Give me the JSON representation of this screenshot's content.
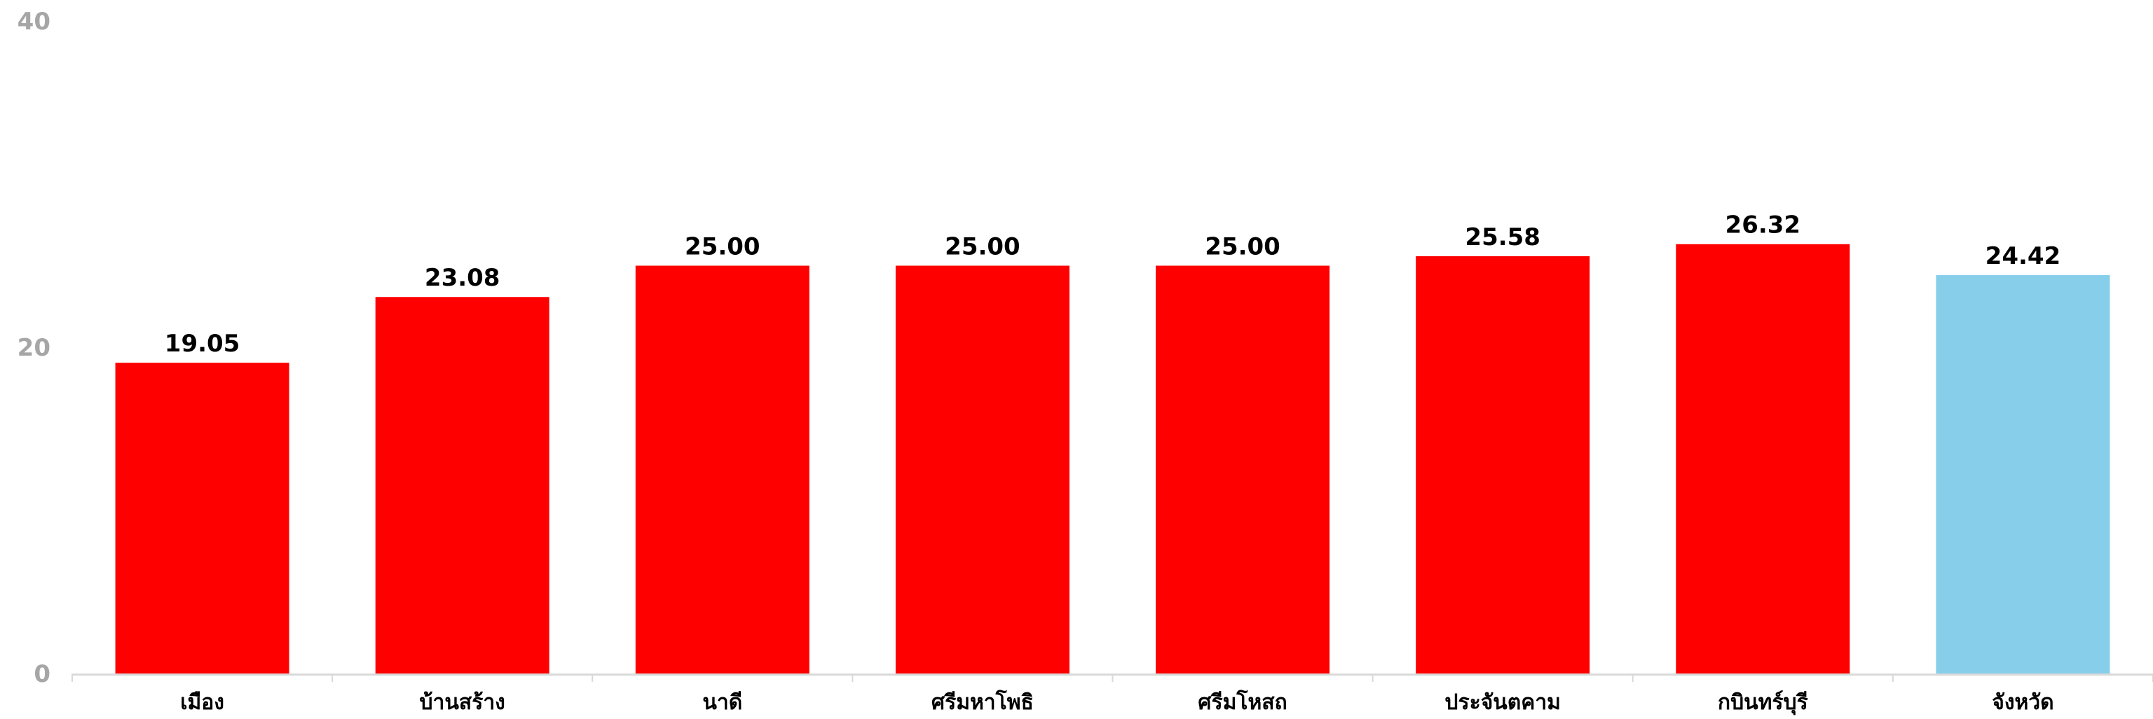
{
  "chart_data": {
    "type": "bar",
    "categories": [
      "เมือง",
      "บ้านสร้าง",
      "นาดี",
      "ศรีมหาโพธิ",
      "ศรีมโหสถ",
      "ประจันตคาม",
      "กบินทร์บุรี",
      "จังหวัด"
    ],
    "values": [
      19.05,
      23.08,
      25.0,
      25.0,
      25.0,
      25.58,
      26.32,
      24.42
    ],
    "value_labels": [
      "19.05",
      "23.08",
      "25.00",
      "25.00",
      "25.00",
      "25.58",
      "26.32",
      "24.42"
    ],
    "ylim": [
      0,
      40
    ],
    "yticks": [
      0,
      20,
      40
    ],
    "ytick_labels": [
      "0",
      "20",
      "40"
    ],
    "colors": [
      "#ff0000",
      "#ff0000",
      "#ff0000",
      "#ff0000",
      "#ff0000",
      "#ff0000",
      "#ff0000",
      "#87ceeb"
    ],
    "title": "",
    "xlabel": "",
    "ylabel": "",
    "grid": false,
    "legend": "none"
  }
}
